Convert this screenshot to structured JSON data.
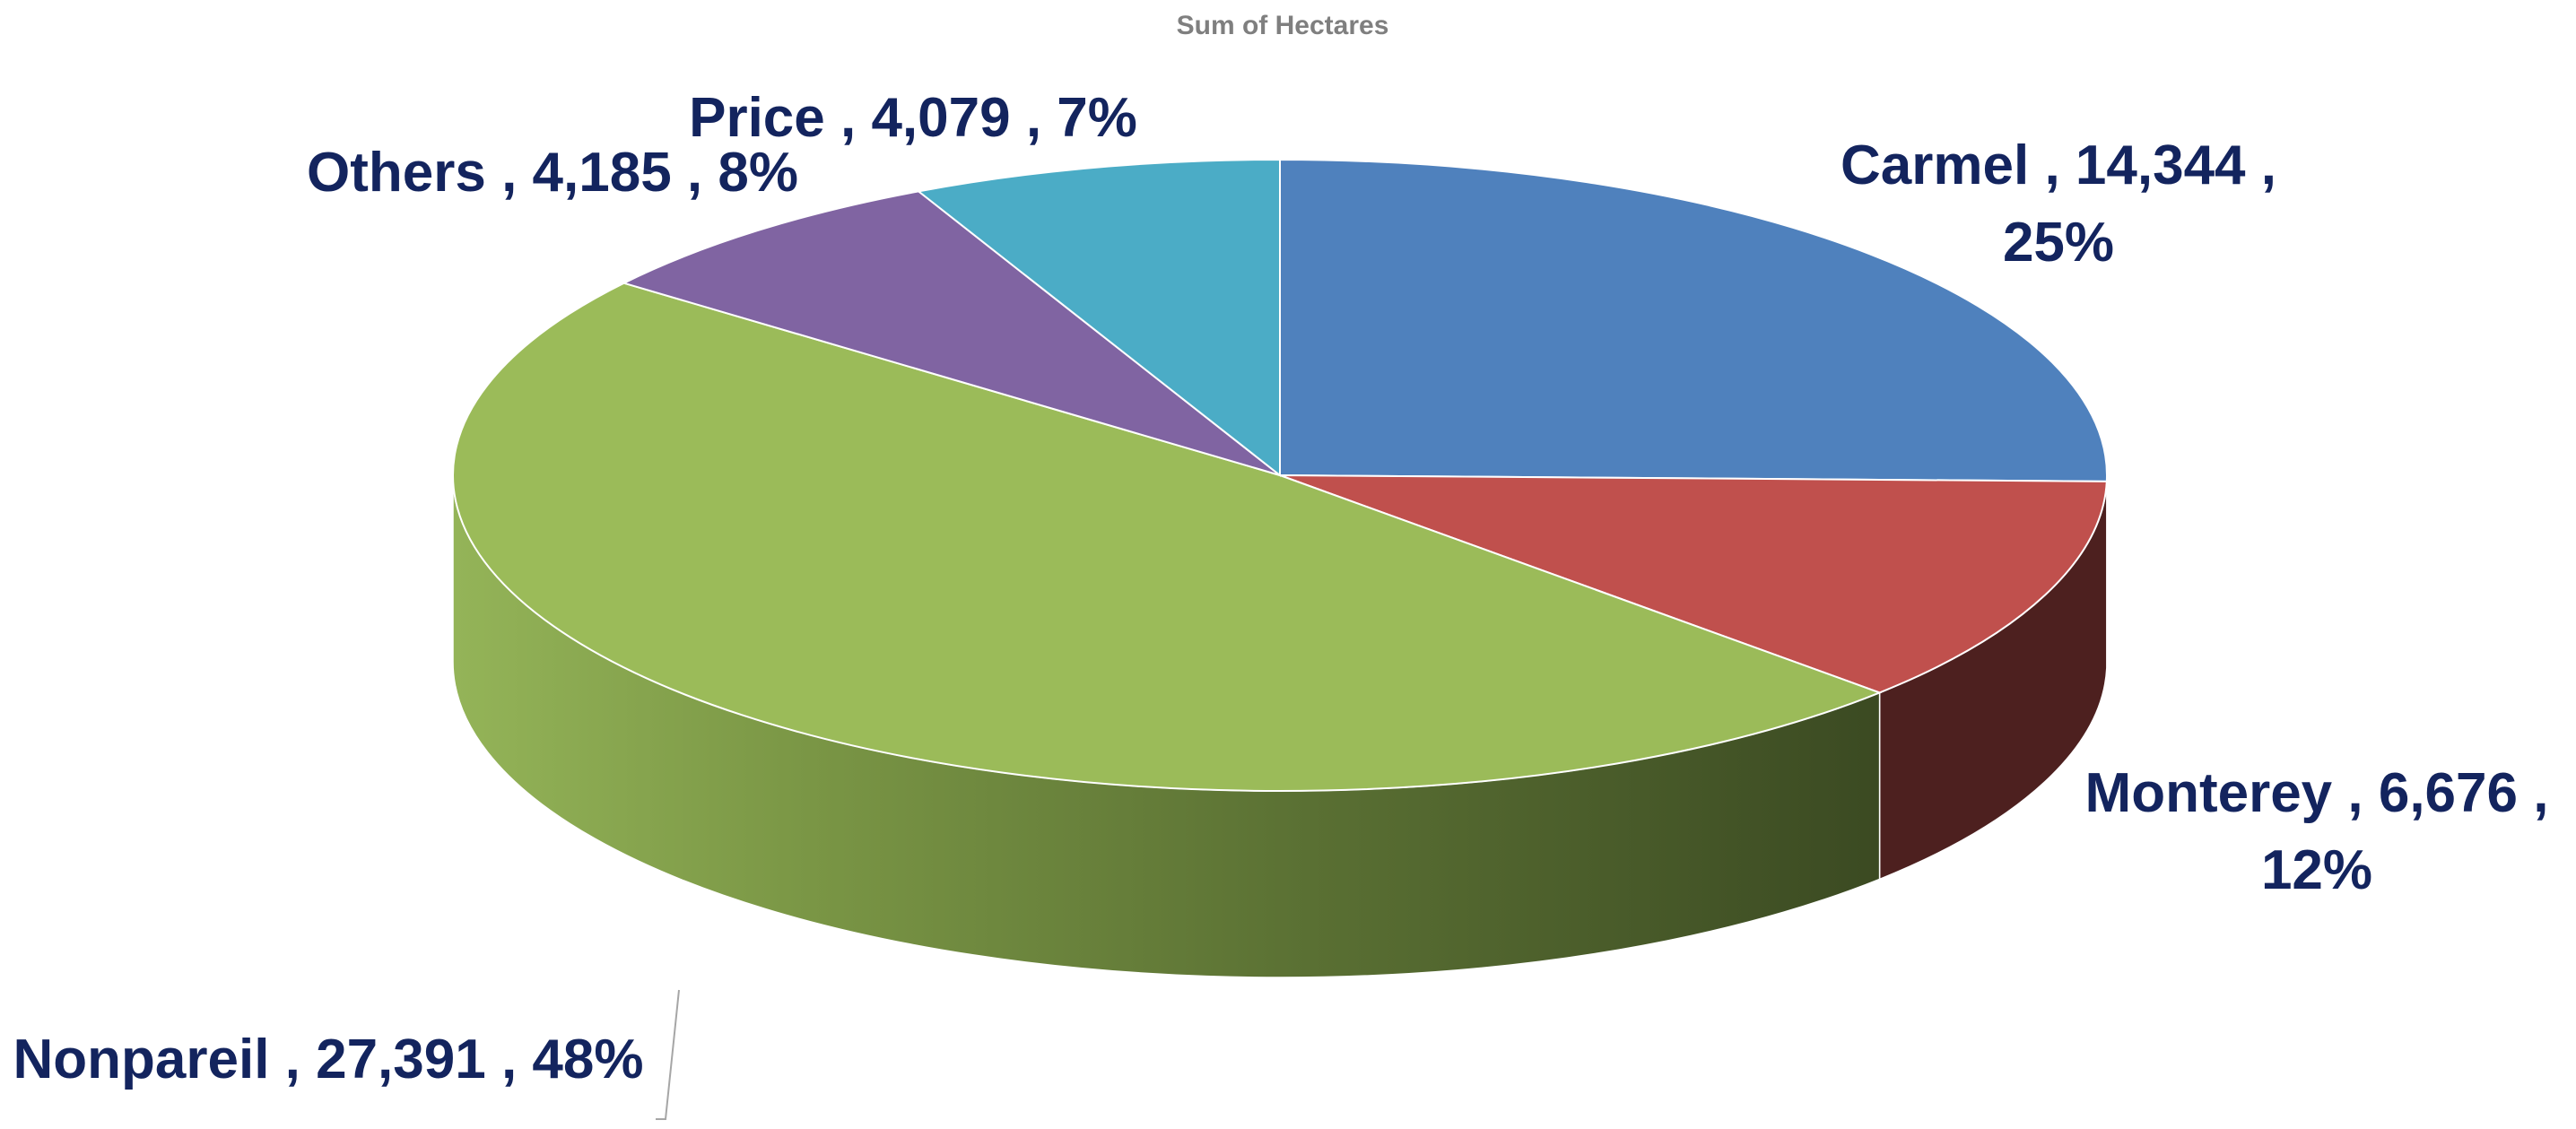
{
  "chart_data": {
    "type": "pie",
    "title": "Sum of Hectares",
    "three_d": true,
    "legend": "none",
    "slices": [
      {
        "category": "Carmel",
        "value": 14344,
        "value_text": "14,344",
        "percent_text": "25%",
        "color": "#4f81bd",
        "label_lines": [
          "Carmel , 14,344 ,",
          "25%"
        ]
      },
      {
        "category": "Monterey",
        "value": 6676,
        "value_text": "6,676",
        "percent_text": "12%",
        "color": "#c0504d",
        "label_lines": [
          "Monterey , 6,676 ,",
          "12%"
        ]
      },
      {
        "category": "Nonpareil",
        "value": 27391,
        "value_text": "27,391",
        "percent_text": "48%",
        "color": "#9bbb59",
        "label_lines": [
          "Nonpareil , 27,391 , 48%"
        ]
      },
      {
        "category": "Others",
        "value": 4185,
        "value_text": "4,185",
        "percent_text": "8%",
        "color": "#8064a2",
        "label_lines": [
          "Others , 4,185 , 8%"
        ]
      },
      {
        "category": "Price",
        "value": 4079,
        "value_text": "4,079",
        "percent_text": "7%",
        "color": "#4bacc6",
        "label_lines": [
          "Price , 4,079 , 7%"
        ]
      }
    ]
  }
}
